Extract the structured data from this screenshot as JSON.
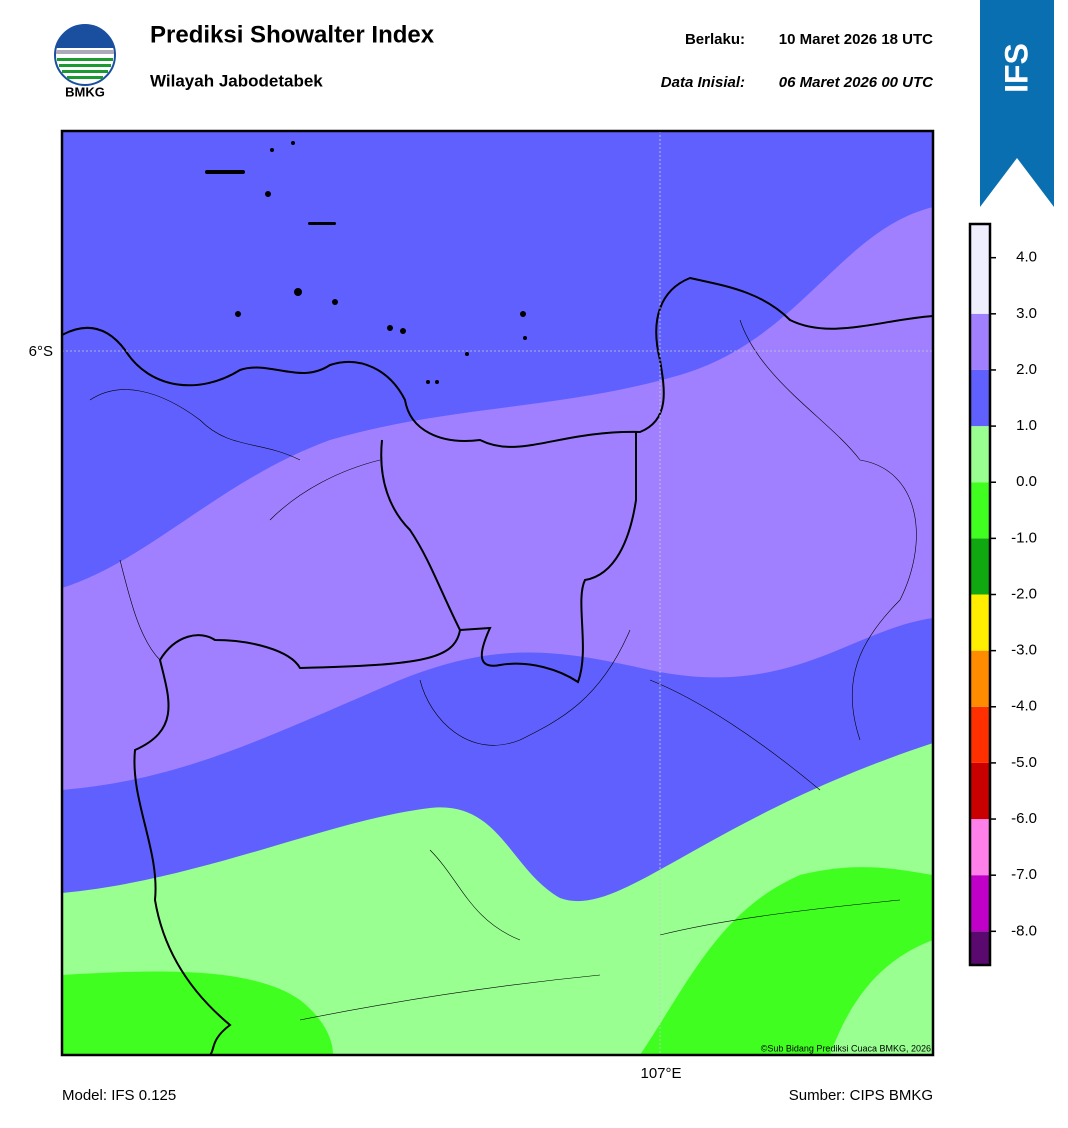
{
  "header": {
    "logo_text": "BMKG",
    "title": "Prediksi Showalter Index",
    "subtitle": "Wilayah Jabodetabek",
    "valid_label": "Berlaku:",
    "valid_time": "10 Maret 2026 18 UTC",
    "init_label": "Data Inisial:",
    "init_time": "06 Maret 2026 00 UTC",
    "badge": "IFS"
  },
  "map": {
    "lat_label": "6°S",
    "lon_label": "107°E",
    "credit": "©Sub Bidang Prediksi Cuaca BMKG, 2026"
  },
  "colorbar": {
    "lim": [
      -8.6,
      4.6
    ],
    "ticks": [
      {
        "value": 4,
        "label": "4.0"
      },
      {
        "value": 3,
        "label": "3.0"
      },
      {
        "value": 2,
        "label": "2.0"
      },
      {
        "value": 1,
        "label": "1.0"
      },
      {
        "value": 0,
        "label": "0.0"
      },
      {
        "value": -1,
        "label": "-1.0"
      },
      {
        "value": -2,
        "label": "-2.0"
      },
      {
        "value": -3,
        "label": "-3.0"
      },
      {
        "value": -4,
        "label": "-4.0"
      },
      {
        "value": -5,
        "label": "-5.0"
      },
      {
        "value": -6,
        "label": "-6.0"
      },
      {
        "value": -7,
        "label": "-7.0"
      },
      {
        "value": -8,
        "label": "-8.0"
      }
    ],
    "bands": [
      {
        "from": -8.6,
        "to": -8,
        "color": "#5a0a6e"
      },
      {
        "from": -8,
        "to": -7,
        "color": "#c000c8"
      },
      {
        "from": -7,
        "to": -6,
        "color": "#ff80e8"
      },
      {
        "from": -6,
        "to": -5,
        "color": "#c80000"
      },
      {
        "from": -5,
        "to": -4,
        "color": "#ff3000"
      },
      {
        "from": -4,
        "to": -3,
        "color": "#ff8c00"
      },
      {
        "from": -3,
        "to": -2,
        "color": "#ffee00"
      },
      {
        "from": -2,
        "to": -1,
        "color": "#10a810"
      },
      {
        "from": -1,
        "to": 0,
        "color": "#40ff20"
      },
      {
        "from": 0,
        "to": 1,
        "color": "#98ff90"
      },
      {
        "from": 1,
        "to": 2,
        "color": "#6060ff"
      },
      {
        "from": 2,
        "to": 3,
        "color": "#a080ff"
      },
      {
        "from": 3,
        "to": 4.6,
        "color": "#eeeeff"
      }
    ]
  },
  "footer": {
    "model": "Model: IFS 0.125",
    "source": "Sumber: CIPS BMKG"
  }
}
